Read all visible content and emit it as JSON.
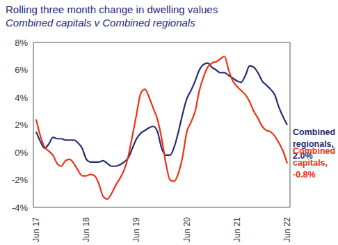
{
  "chart_data": {
    "type": "line",
    "title": "Rolling three month change in dwelling values",
    "subtitle": "Combined capitals v Combined regionals",
    "categories": [
      "Jun 17",
      null,
      null,
      null,
      null,
      null,
      null,
      null,
      null,
      null,
      null,
      null,
      "Jun 18",
      null,
      null,
      null,
      null,
      null,
      null,
      null,
      null,
      null,
      null,
      null,
      "Jun 19",
      null,
      null,
      null,
      null,
      null,
      null,
      null,
      null,
      null,
      null,
      null,
      "Jun 20",
      null,
      null,
      null,
      null,
      null,
      null,
      null,
      null,
      null,
      null,
      null,
      "Jun 21",
      null,
      null,
      null,
      null,
      null,
      null,
      null,
      null,
      null,
      null,
      null,
      "Jun 22"
    ],
    "series": [
      {
        "name": "Combined regionals",
        "color": "#252a78",
        "values": [
          1.5,
          0.8,
          0.3,
          0.6,
          1.1,
          1.0,
          1.0,
          0.9,
          0.9,
          0.9,
          0.7,
          0.3,
          -0.5,
          -0.7,
          -0.7,
          -0.7,
          -0.6,
          -0.8,
          -1.0,
          -1.0,
          -0.9,
          -0.7,
          -0.4,
          0.3,
          1.0,
          1.4,
          1.6,
          1.8,
          1.9,
          1.5,
          0.3,
          -0.2,
          -0.2,
          0.4,
          1.5,
          2.8,
          3.9,
          4.5,
          5.2,
          6.0,
          6.4,
          6.5,
          6.2,
          6.0,
          5.8,
          5.8,
          5.6,
          5.4,
          5.2,
          5.1,
          5.6,
          6.3,
          6.2,
          5.8,
          5.2,
          4.9,
          4.6,
          4.2,
          3.3,
          2.6,
          2.0
        ]
      },
      {
        "name": "Combined capitals",
        "color": "#f0300f",
        "values": [
          2.4,
          1.2,
          0.4,
          0.1,
          -0.2,
          -0.8,
          -1.0,
          -0.6,
          -0.5,
          -0.8,
          -1.3,
          -1.7,
          -1.7,
          -1.6,
          -1.7,
          -2.3,
          -3.2,
          -3.4,
          -3.0,
          -2.4,
          -1.9,
          -1.3,
          -0.3,
          1.2,
          2.8,
          4.3,
          4.6,
          4.0,
          3.2,
          2.4,
          1.0,
          -0.8,
          -2.0,
          -2.1,
          -1.5,
          -0.3,
          1.5,
          2.2,
          3.0,
          4.5,
          5.5,
          6.2,
          6.5,
          6.6,
          6.8,
          7.0,
          6.0,
          5.2,
          4.8,
          4.5,
          4.2,
          3.7,
          3.0,
          2.5,
          1.9,
          1.6,
          1.5,
          1.2,
          0.7,
          0.1,
          -0.8
        ]
      }
    ],
    "ylim": [
      -4,
      8
    ],
    "yticks": [
      {
        "value": -4,
        "label": "-4%"
      },
      {
        "value": -2,
        "label": "-2%"
      },
      {
        "value": 0,
        "label": "0%"
      },
      {
        "value": 2,
        "label": "2%"
      },
      {
        "value": 4,
        "label": "4%"
      },
      {
        "value": 6,
        "label": "6%"
      },
      {
        "value": 8,
        "label": "8%"
      }
    ],
    "grid": false,
    "annotations": [
      {
        "series": "Combined regionals",
        "text": "Combined regionals, 2.0%"
      },
      {
        "series": "Combined capitals",
        "text": "Combined capitals, -0.8%"
      }
    ]
  }
}
